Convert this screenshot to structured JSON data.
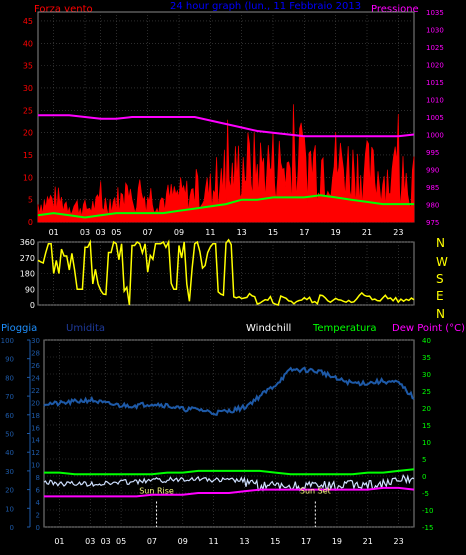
{
  "top": {
    "title": "24 hour graph (lun., 11 Febbraio 2013",
    "left_label": "Forza vento",
    "right_label": "Pressione"
  },
  "bottom": {
    "labels": {
      "pioggia": "Pioggia",
      "umidita": "Umidita",
      "windchill": "Windchill",
      "temperatura": "Temperatura",
      "dewpoint": "Dew Point (°C)",
      "sunrise": "Sun Rise",
      "sunset": "Sun Set"
    }
  },
  "x_ticks": [
    "01",
    "03",
    "03",
    "05",
    "07",
    "09",
    "11",
    "13",
    "15",
    "17",
    "19",
    "21",
    "23"
  ],
  "direction_letters": [
    "N",
    "W",
    "S",
    "E",
    "N"
  ],
  "colors": {
    "wind_speed": "#ff0000",
    "wind_gust": "#ff0000",
    "pressure": "#ff00ff",
    "wind_avg": "#00ff00",
    "direction": "#ffff00",
    "humidity": "#1e5aa8",
    "windchill": "#ffffff",
    "temperature": "#00ff00",
    "dew_point": "#ff00ff",
    "rain": "#1e5aa8",
    "grid": "#4a4a4a",
    "title": "#0000ff"
  },
  "chart_data": [
    {
      "type": "line",
      "name": "wind-pressure",
      "x_hours": [
        0,
        1,
        2,
        3,
        4,
        5,
        6,
        7,
        8,
        9,
        10,
        11,
        12,
        13,
        14,
        15,
        16,
        17,
        18,
        19,
        20,
        21,
        22,
        23,
        24
      ],
      "series": [
        {
          "name": "Forza vento",
          "axis": "left",
          "values": [
            4,
            5,
            4,
            3,
            4,
            5,
            5,
            6,
            5,
            6,
            6,
            7,
            8,
            13,
            12,
            13,
            12,
            13,
            14,
            13,
            12,
            11,
            10,
            10,
            9
          ]
        },
        {
          "name": "",
          "axis": "left",
          "values": [
            1.5,
            2,
            1.5,
            1,
            1.5,
            2,
            2,
            2,
            2,
            2.5,
            3,
            3.5,
            4,
            5,
            5,
            5.5,
            5.5,
            5.5,
            6,
            5.5,
            5,
            4.5,
            4,
            4,
            4
          ]
        },
        {
          "name": "Pressione",
          "axis": "right",
          "values": [
            1005.5,
            1005.5,
            1005.5,
            1005,
            1004.5,
            1004.5,
            1005,
            1005,
            1005,
            1005,
            1005,
            1004,
            1003,
            1002,
            1001,
            1000.5,
            1000,
            999.5,
            999.5,
            999.5,
            999.5,
            999.5,
            999.5,
            999.5,
            1000
          ]
        }
      ],
      "left_ylim": [
        0,
        47
      ],
      "left_ticks": [
        0,
        5,
        10,
        15,
        20,
        25,
        30,
        35,
        40,
        45
      ],
      "right_ylim": [
        975,
        1035
      ],
      "right_ticks": [
        975,
        980,
        985,
        990,
        995,
        1000,
        1005,
        1010,
        1015,
        1020,
        1025,
        1030,
        1035
      ]
    },
    {
      "type": "line",
      "name": "wind-direction",
      "x_hours": [
        0,
        0.5,
        1,
        1.5,
        2,
        2.5,
        3,
        3.5,
        4,
        4.5,
        5,
        5.5,
        6,
        6.5,
        7,
        7.5,
        8,
        8.5,
        9,
        9.5,
        10,
        10.5,
        11,
        11.5,
        12,
        12.5,
        13,
        13.5,
        14,
        14.5,
        15,
        15.5,
        16,
        16.5,
        17,
        17.5,
        18,
        18.5,
        19,
        19.5,
        20,
        20.5,
        21,
        21.5,
        22,
        22.5,
        23,
        23.5,
        24
      ],
      "values": [
        240,
        350,
        180,
        280,
        200,
        90,
        330,
        120,
        60,
        300,
        350,
        80,
        340,
        350,
        200,
        350,
        330,
        90,
        340,
        120,
        350,
        300,
        350,
        60,
        360,
        40,
        30,
        60,
        20,
        40,
        10,
        50,
        20,
        30,
        40,
        20,
        50,
        30,
        40,
        20,
        30,
        60,
        40,
        20,
        50,
        30,
        20,
        40,
        30
      ],
      "ylim": [
        0,
        360
      ],
      "ticks": [
        0,
        90,
        180,
        270,
        360
      ]
    },
    {
      "type": "line",
      "name": "temp-humidity",
      "x_hours": [
        0,
        1,
        2,
        3,
        4,
        5,
        6,
        7,
        8,
        9,
        10,
        11,
        12,
        13,
        14,
        15,
        16,
        17,
        18,
        19,
        20,
        21,
        22,
        23,
        24
      ],
      "series": [
        {
          "name": "Umidita",
          "axis": "humidity",
          "values": [
            66,
            66,
            67,
            68,
            66,
            65,
            65,
            66,
            65,
            63,
            63,
            61,
            62,
            64,
            70,
            76,
            84,
            84,
            83,
            79,
            77,
            77,
            78,
            77,
            69
          ]
        },
        {
          "name": "Windchill",
          "axis": "temp",
          "values": [
            -1,
            -1.5,
            -1.5,
            -1.5,
            -1.5,
            -1,
            -1,
            -0.5,
            -0.5,
            0,
            0,
            -0.5,
            -0.5,
            -0.5,
            -1.5,
            -1.5,
            -1.5,
            -1.5,
            -1.5,
            -1.5,
            -1,
            -1,
            -1,
            0,
            1
          ]
        },
        {
          "name": "Temperatura",
          "axis": "temp",
          "values": [
            1,
            1,
            0.5,
            0.5,
            0.5,
            0.5,
            0.5,
            0.5,
            1,
            1,
            1.5,
            1.5,
            1.5,
            1.5,
            1.5,
            1,
            0.5,
            0.5,
            0.5,
            0.5,
            0.5,
            1,
            1,
            1.5,
            2
          ]
        },
        {
          "name": "Dew Point (°C)",
          "axis": "temp",
          "values": [
            -6,
            -6,
            -6,
            -6,
            -6,
            -6,
            -6,
            -5.5,
            -5.5,
            -5.5,
            -5,
            -5,
            -5,
            -4.5,
            -4,
            -4,
            -4,
            -4,
            -4,
            -4,
            -4,
            -4,
            -3.5,
            -3.5,
            -4
          ]
        }
      ],
      "rain_ylim": [
        0,
        100
      ],
      "rain_ticks": [
        0,
        10,
        20,
        30,
        40,
        50,
        60,
        70,
        80,
        90,
        100
      ],
      "humidity_ylim": [
        0,
        30
      ],
      "humidity_ticks": [
        0,
        2,
        4,
        6,
        8,
        10,
        12,
        14,
        16,
        18,
        20,
        22,
        24,
        26,
        28,
        30
      ],
      "temp_ylim": [
        -15,
        40
      ],
      "temp_ticks": [
        -15,
        -10,
        -5,
        0,
        5,
        10,
        15,
        20,
        25,
        30,
        35,
        40
      ],
      "sunrise_hour": 7.3,
      "sunset_hour": 17.6
    }
  ]
}
